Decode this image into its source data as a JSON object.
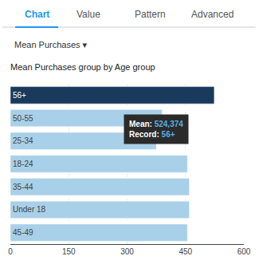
{
  "chart_data": {
    "type": "bar",
    "orientation": "horizontal",
    "title": "Mean Purchases group by Age group",
    "categories": [
      "56+",
      "50-55",
      "25-34",
      "18-24",
      "35-44",
      "Under 18",
      "45-49"
    ],
    "values": [
      524,
      390,
      375,
      455,
      460,
      460,
      455
    ],
    "colors": [
      "#1a3a5c",
      "#a8d0e8",
      "#a8d0e8",
      "#a8d0e8",
      "#a8d0e8",
      "#a8d0e8",
      "#a8d0e8"
    ],
    "xlim": [
      0,
      600
    ],
    "xticks": [
      0,
      150,
      300,
      450,
      600
    ],
    "grid": true,
    "tick_labels": "x",
    "annotations": [
      {
        "text": "Chart",
        "color": "#2196f3"
      },
      {
        "text": "Value",
        "color": "#555555"
      },
      {
        "text": "Pattern",
        "color": "#555555"
      },
      {
        "text": "Advanced",
        "color": "#555555"
      },
      {
        "text": "Mean Purchases ▾",
        "color": "#333333"
      },
      {
        "text": "Mean:",
        "color": "#ffffff"
      },
      {
        "text": "524,374",
        "color": "#5aafe0"
      },
      {
        "text": "Record:",
        "color": "#ffffff"
      },
      {
        "text": "56+",
        "color": "#5aafe0"
      }
    ]
  }
}
